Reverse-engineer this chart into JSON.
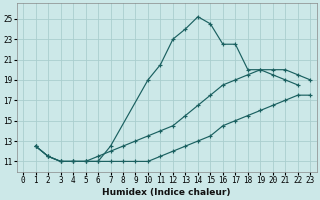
{
  "xlabel": "Humidex (Indice chaleur)",
  "ylabel": "",
  "background_color": "#cce8e8",
  "grid_color": "#aacece",
  "line_color": "#1a6060",
  "xlim": [
    -0.5,
    23.5
  ],
  "ylim": [
    10.0,
    26.5
  ],
  "xticks": [
    0,
    1,
    2,
    3,
    4,
    5,
    6,
    7,
    8,
    9,
    10,
    11,
    12,
    13,
    14,
    15,
    16,
    17,
    18,
    19,
    20,
    21,
    22,
    23
  ],
  "yticks": [
    11,
    13,
    15,
    17,
    19,
    21,
    23,
    25
  ],
  "series": [
    {
      "x": [
        1,
        2,
        3,
        4,
        5,
        6,
        7,
        10,
        11,
        12,
        13,
        14,
        15,
        16,
        17,
        18,
        19,
        20,
        21,
        22
      ],
      "y": [
        12.5,
        11.5,
        11.0,
        11.0,
        11.0,
        11.0,
        12.5,
        19.0,
        20.5,
        23.0,
        24.0,
        25.2,
        24.5,
        22.5,
        22.5,
        20.0,
        20.0,
        19.5,
        19.0,
        18.5
      ]
    },
    {
      "x": [
        1,
        2,
        3,
        4,
        5,
        6,
        7,
        8,
        9,
        10,
        11,
        12,
        13,
        14,
        15,
        16,
        17,
        18,
        19,
        20,
        21,
        22,
        23
      ],
      "y": [
        12.5,
        11.5,
        11.0,
        11.0,
        11.0,
        11.0,
        11.0,
        11.0,
        11.0,
        11.0,
        11.5,
        12.0,
        12.5,
        13.0,
        13.5,
        14.5,
        15.0,
        15.5,
        16.0,
        16.5,
        17.0,
        17.5,
        17.5
      ]
    },
    {
      "x": [
        1,
        2,
        3,
        4,
        5,
        6,
        7,
        8,
        9,
        10,
        11,
        12,
        13,
        14,
        15,
        16,
        17,
        18,
        19,
        20,
        21,
        22,
        23
      ],
      "y": [
        12.5,
        11.5,
        11.0,
        11.0,
        11.0,
        11.5,
        12.0,
        12.5,
        13.0,
        13.5,
        14.0,
        14.5,
        15.5,
        16.5,
        17.5,
        18.5,
        19.0,
        19.5,
        20.0,
        20.0,
        20.0,
        19.5,
        19.0
      ]
    }
  ]
}
